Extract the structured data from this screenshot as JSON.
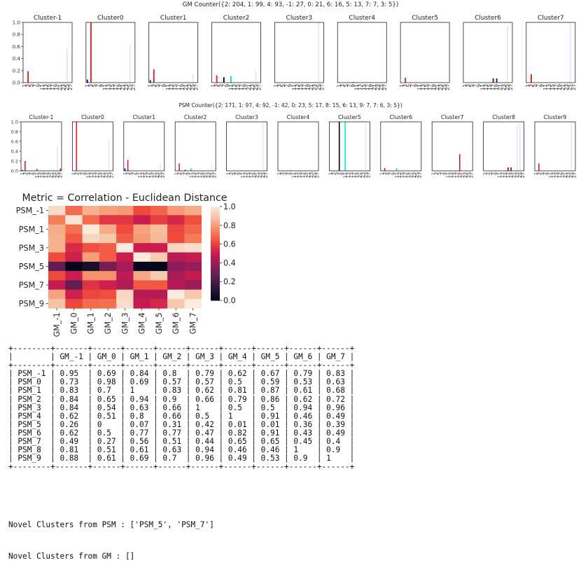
{
  "chart_data": [
    {
      "type": "bar",
      "title": "GM Counter({2: 204, 1: 99, 4: 93, -1: 27, 0: 21, 6: 16, 5: 13, 7: 7, 3: 5})",
      "x_tick_labels": [
        "1",
        "3",
        "5",
        "7",
        "9",
        "11",
        "13",
        "15",
        "17",
        "19",
        "21",
        "23",
        "25",
        "27"
      ],
      "y_ticks": [
        "0.0",
        "0.2",
        "0.4",
        "0.6",
        "0.8",
        "1.0"
      ],
      "ylim": [
        0,
        1
      ],
      "panels": [
        {
          "name": "Cluster-1",
          "bars": [
            {
              "x": 3,
              "value": 0.19,
              "color": "#e41a1c"
            },
            {
              "x": 25,
              "value": 0.56,
              "color": "#e6e6fa"
            }
          ]
        },
        {
          "name": "Cluster0",
          "bars": [
            {
              "x": 1,
              "value": 0.05,
              "color": "#0000ff"
            },
            {
              "x": 3,
              "value": 1.0,
              "color": "#e41a1c"
            },
            {
              "x": 25,
              "value": 0.62,
              "color": "#e6e6fa"
            }
          ]
        },
        {
          "name": "Cluster1",
          "bars": [
            {
              "x": 1,
              "value": 0.04,
              "color": "#0000ff"
            },
            {
              "x": 3,
              "value": 0.22,
              "color": "#e41a1c"
            },
            {
              "x": 25,
              "value": 0.15,
              "color": "#e6e6fa"
            }
          ]
        },
        {
          "name": "Cluster2",
          "bars": [
            {
              "x": 3,
              "value": 0.12,
              "color": "#e41a1c"
            },
            {
              "x": 7,
              "value": 0.09,
              "color": "#000000"
            },
            {
              "x": 11,
              "value": 0.11,
              "color": "#00e5ee"
            },
            {
              "x": 25,
              "value": 0.2,
              "color": "#e6e6fa"
            }
          ]
        },
        {
          "name": "Cluster3",
          "bars": [
            {
              "x": 25,
              "value": 1.0,
              "color": "#e6e6fa"
            }
          ]
        },
        {
          "name": "Cluster4",
          "bars": [
            {
              "x": 9,
              "value": 0.01,
              "color": "#8b0000"
            }
          ]
        },
        {
          "name": "Cluster5",
          "bars": [
            {
              "x": 3,
              "value": 0.08,
              "color": "#e41a1c"
            }
          ]
        },
        {
          "name": "Cluster6",
          "bars": [
            {
              "x": 17,
              "value": 0.07,
              "color": "#8b0000"
            },
            {
              "x": 19,
              "value": 0.07,
              "color": "#4b0082"
            },
            {
              "x": 25,
              "value": 0.94,
              "color": "#e6e6fa"
            }
          ]
        },
        {
          "name": "Cluster7",
          "bars": [
            {
              "x": 3,
              "value": 0.14,
              "color": "#e41a1c"
            },
            {
              "x": 25,
              "value": 1.0,
              "color": "#e6e6fa"
            }
          ]
        }
      ]
    },
    {
      "type": "bar",
      "title": "PSM Counter({2: 171, 1: 97, 4: 92, -1: 42, 0: 23, 5: 17, 8: 15, 6: 13, 9: 7, 7: 6, 3: 5})",
      "x_tick_labels": [
        "1",
        "3",
        "5",
        "7",
        "9",
        "11",
        "13",
        "15",
        "17",
        "19",
        "21",
        "23",
        "25",
        "27"
      ],
      "y_ticks": [
        "0.0",
        "0.2",
        "0.4",
        "0.6",
        "0.8",
        "1.0"
      ],
      "ylim": [
        0,
        1
      ],
      "panels": [
        {
          "name": "Cluster-1",
          "bars": [
            {
              "x": 1,
              "value": 0.02,
              "color": "#0000ff"
            },
            {
              "x": 3,
              "value": 0.2,
              "color": "#e41a1c"
            },
            {
              "x": 11,
              "value": 0.04,
              "color": "#9932cc"
            },
            {
              "x": 25,
              "value": 0.49,
              "color": "#e6e6fa"
            },
            {
              "x": 27,
              "value": 0.05,
              "color": "#e41a1c"
            }
          ]
        },
        {
          "name": "Cluster0",
          "bars": [
            {
              "x": 3,
              "value": 1.0,
              "color": "#e41a1c"
            },
            {
              "x": 25,
              "value": 0.65,
              "color": "#e6e6fa"
            }
          ]
        },
        {
          "name": "Cluster1",
          "bars": [
            {
              "x": 1,
              "value": 0.05,
              "color": "#0000ff"
            },
            {
              "x": 3,
              "value": 0.22,
              "color": "#e41a1c"
            },
            {
              "x": 25,
              "value": 0.15,
              "color": "#e6e6fa"
            }
          ]
        },
        {
          "name": "Cluster2",
          "bars": [
            {
              "x": 3,
              "value": 0.15,
              "color": "#e41a1c"
            },
            {
              "x": 7,
              "value": 0.02,
              "color": "#000000"
            },
            {
              "x": 11,
              "value": 0.05,
              "color": "#00e5ee"
            },
            {
              "x": 25,
              "value": 0.14,
              "color": "#e6e6fa"
            }
          ]
        },
        {
          "name": "Cluster3",
          "bars": [
            {
              "x": 25,
              "value": 1.0,
              "color": "#e6e6fa"
            }
          ]
        },
        {
          "name": "Cluster4",
          "bars": [
            {
              "x": 9,
              "value": 0.01,
              "color": "#8b0000"
            }
          ]
        },
        {
          "name": "Cluster5",
          "bars": [
            {
              "x": 7,
              "value": 1.0,
              "color": "#000000"
            },
            {
              "x": 11,
              "value": 1.0,
              "color": "#00e5ee"
            },
            {
              "x": 25,
              "value": 1.0,
              "color": "#e6e6fa"
            }
          ]
        },
        {
          "name": "Cluster6",
          "bars": [
            {
              "x": 3,
              "value": 0.06,
              "color": "#e41a1c"
            },
            {
              "x": 11,
              "value": 0.06,
              "color": "#00e5ee"
            }
          ]
        },
        {
          "name": "Cluster7",
          "bars": [
            {
              "x": 19,
              "value": 0.34,
              "color": "#a52a2a"
            }
          ]
        },
        {
          "name": "Cluster8",
          "bars": [
            {
              "x": 17,
              "value": 0.07,
              "color": "#8b0000"
            },
            {
              "x": 19,
              "value": 0.07,
              "color": "#8b0000"
            },
            {
              "x": 23,
              "value": 0.93,
              "color": "#e6e6fa"
            },
            {
              "x": 25,
              "value": 0.98,
              "color": "#e6e6fa"
            }
          ]
        },
        {
          "name": "Cluster9",
          "bars": [
            {
              "x": 3,
              "value": 0.15,
              "color": "#e41a1c"
            },
            {
              "x": 25,
              "value": 1.0,
              "color": "#e6e6fa"
            }
          ]
        }
      ]
    },
    {
      "type": "heatmap",
      "title": "Metric = Correlation - Euclidean Distance",
      "y_tick_labels": [
        "PSM_-1",
        "PSM_1",
        "PSM_3",
        "PSM_5",
        "PSM_7",
        "PSM_9"
      ],
      "x_tick_labels": [
        "GM_-1",
        "GM_0",
        "GM_1",
        "GM_2",
        "GM_3",
        "GM_4",
        "GM_5",
        "GM_6",
        "GM_7"
      ],
      "colorbar_ticks": [
        "0.0",
        "0.2",
        "0.4",
        "0.6",
        "0.8",
        "1.0"
      ],
      "colorbar_range": [
        0,
        1
      ],
      "colormap": "rocket"
    }
  ],
  "table": {
    "columns": [
      "",
      "GM_-1",
      "GM_0",
      "GM_1",
      "GM_2",
      "GM_3",
      "GM_4",
      "GM_5",
      "GM_6",
      "GM_7"
    ],
    "rows": [
      {
        "label": "PSM_-1",
        "values": [
          "0.95",
          "0.69",
          "0.84",
          "0.8",
          "0.79",
          "0.62",
          "0.67",
          "0.79",
          "0.83"
        ]
      },
      {
        "label": "PSM_0",
        "values": [
          "0.73",
          "0.98",
          "0.69",
          "0.57",
          "0.57",
          "0.5",
          "0.59",
          "0.53",
          "0.63"
        ]
      },
      {
        "label": "PSM_1",
        "values": [
          "0.83",
          "0.7",
          "1",
          "0.83",
          "0.62",
          "0.81",
          "0.87",
          "0.61",
          "0.68"
        ]
      },
      {
        "label": "PSM_2",
        "values": [
          "0.84",
          "0.65",
          "0.94",
          "0.9",
          "0.66",
          "0.79",
          "0.86",
          "0.62",
          "0.72"
        ]
      },
      {
        "label": "PSM_3",
        "values": [
          "0.84",
          "0.54",
          "0.63",
          "0.66",
          "1",
          "0.5",
          "0.5",
          "0.94",
          "0.96"
        ]
      },
      {
        "label": "PSM_4",
        "values": [
          "0.62",
          "0.51",
          "0.8",
          "0.66",
          "0.5",
          "1",
          "0.91",
          "0.46",
          "0.49"
        ]
      },
      {
        "label": "PSM_5",
        "values": [
          "0.26",
          "0",
          "0.07",
          "0.31",
          "0.42",
          "0.01",
          "0.01",
          "0.36",
          "0.39"
        ]
      },
      {
        "label": "PSM_6",
        "values": [
          "0.62",
          "0.5",
          "0.77",
          "0.77",
          "0.47",
          "0.82",
          "0.91",
          "0.43",
          "0.49"
        ]
      },
      {
        "label": "PSM_7",
        "values": [
          "0.49",
          "0.27",
          "0.56",
          "0.51",
          "0.44",
          "0.65",
          "0.65",
          "0.45",
          "0.4"
        ]
      },
      {
        "label": "PSM_8",
        "values": [
          "0.81",
          "0.51",
          "0.61",
          "0.63",
          "0.94",
          "0.46",
          "0.46",
          "1",
          "0.9"
        ]
      },
      {
        "label": "PSM_9",
        "values": [
          "0.88",
          "0.61",
          "0.69",
          "0.7",
          "0.96",
          "0.49",
          "0.53",
          "0.9",
          "1"
        ]
      }
    ]
  },
  "novel": {
    "psm_line": "Novel Clusters from PSM : ['PSM_5', 'PSM_7']",
    "gm_line": "Novel Clusters from GM : []"
  }
}
